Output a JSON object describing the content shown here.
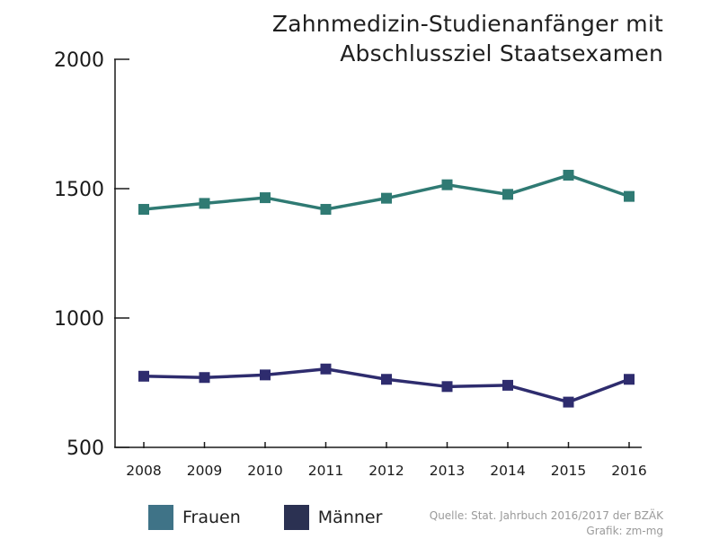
{
  "title_lines": [
    "Zahnmedizin-Studienanfänger mit",
    "Abschlussziel Staatsexamen"
  ],
  "source_lines": [
    "Quelle: Stat. Jahrbuch 2016/2017 der BZÄK",
    "Grafik: zm-mg"
  ],
  "colors": {
    "frauen": "#2f7a73",
    "maenner": "#2e2c6e",
    "axis": "#1a1a1a",
    "legend_frauen": "#3f7387",
    "legend_maenner": "#2b3152"
  },
  "chart_data": {
    "type": "line",
    "title": "Zahnmedizin-Studienanfänger mit Abschlussziel Staatsexamen",
    "xlabel": "",
    "ylabel": "",
    "x": [
      "2008",
      "2009",
      "2010",
      "2011",
      "2012",
      "2013",
      "2014",
      "2015",
      "2016"
    ],
    "ylim": [
      500,
      2000
    ],
    "yticks": [
      "500",
      "1000",
      "1500",
      "2000"
    ],
    "grid": false,
    "legend_position": "bottom-left",
    "series": [
      {
        "name": "Frauen",
        "values": [
          1420,
          1443,
          1465,
          1420,
          1463,
          1515,
          1478,
          1552,
          1470
        ]
      },
      {
        "name": "Männer",
        "values": [
          775,
          770,
          780,
          803,
          763,
          735,
          740,
          675,
          763
        ]
      }
    ]
  }
}
